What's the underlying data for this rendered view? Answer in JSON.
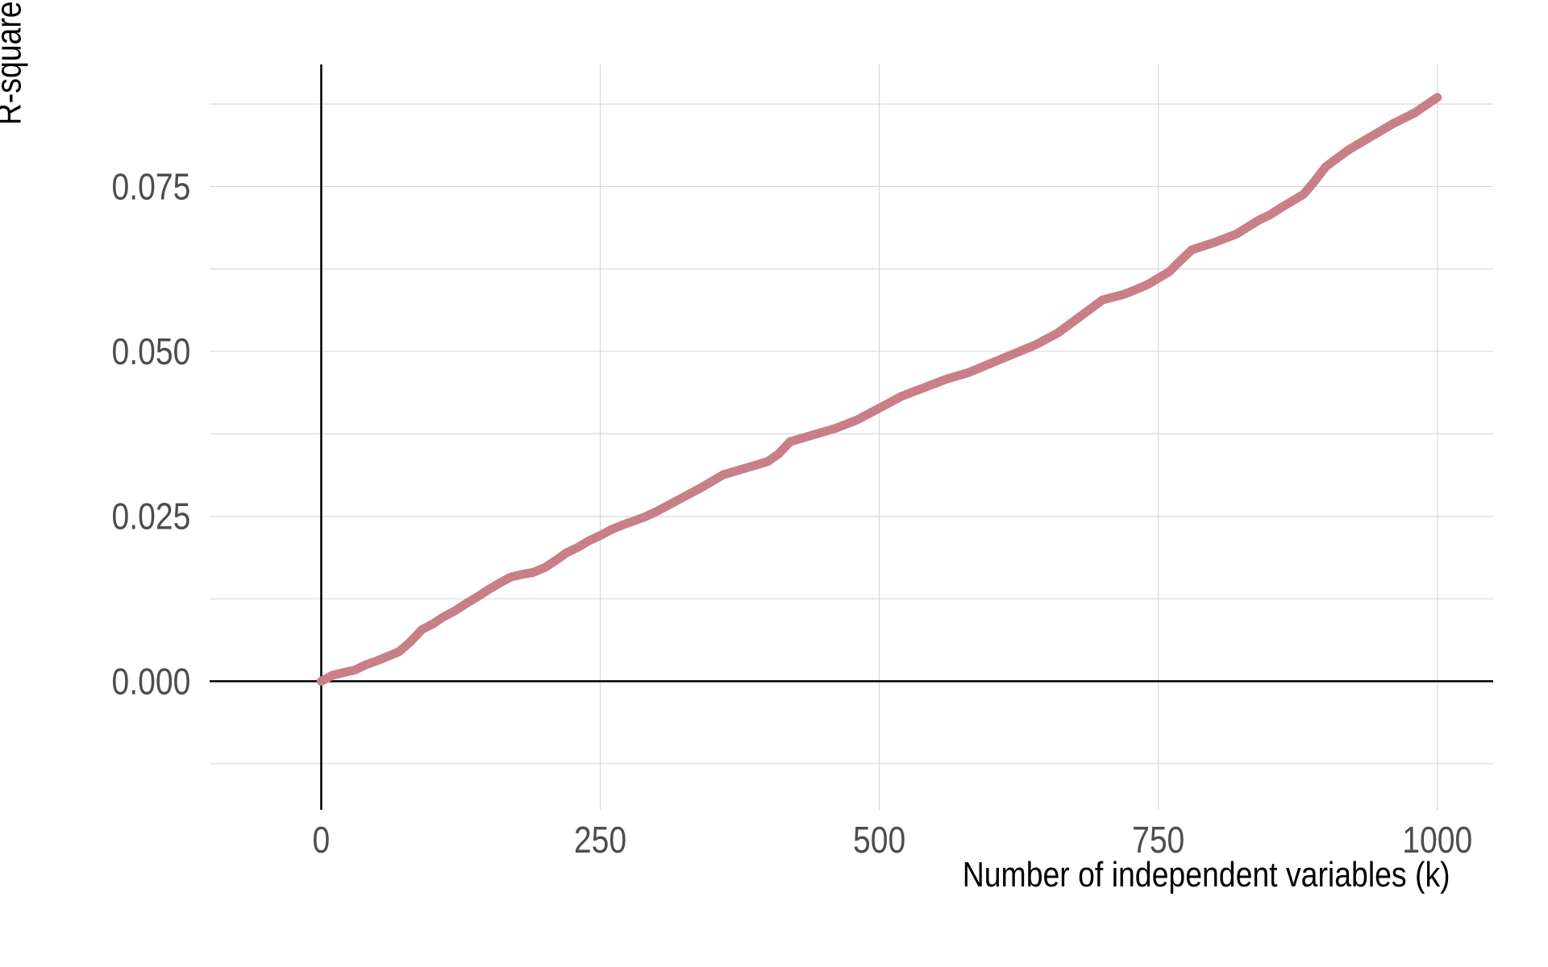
{
  "chart_data": {
    "type": "line",
    "title": "",
    "xlabel": "Number of independent variables (k)",
    "ylabel": "R-squared",
    "xlim": [
      -100,
      1050
    ],
    "ylim": [
      -0.0195,
      0.0935
    ],
    "x_ticks": [
      0,
      250,
      500,
      750,
      1000
    ],
    "x_tick_labels": [
      "0",
      "250",
      "500",
      "750",
      "1000"
    ],
    "y_ticks": [
      0.0,
      0.025,
      0.05,
      0.075
    ],
    "y_tick_labels": [
      "0.000",
      "0.025",
      "0.050",
      "0.075"
    ],
    "grid": true,
    "line_color": "#c97f87",
    "series": [
      {
        "x": [
          0,
          10,
          20,
          30,
          40,
          50,
          60,
          70,
          80,
          90,
          100,
          110,
          120,
          130,
          140,
          150,
          160,
          170,
          180,
          190,
          200,
          210,
          220,
          230,
          240,
          250,
          260,
          270,
          280,
          290,
          300,
          320,
          340,
          360,
          380,
          400,
          410,
          420,
          440,
          460,
          480,
          500,
          520,
          540,
          560,
          580,
          600,
          620,
          640,
          660,
          680,
          700,
          720,
          740,
          760,
          770,
          780,
          800,
          820,
          840,
          850,
          860,
          880,
          890,
          900,
          920,
          940,
          960,
          980,
          1000
        ],
        "y": [
          0.0,
          0.0009,
          0.0013,
          0.0017,
          0.0025,
          0.0031,
          0.0038,
          0.0045,
          0.006,
          0.0078,
          0.0087,
          0.0098,
          0.0107,
          0.0118,
          0.0128,
          0.0139,
          0.0149,
          0.0158,
          0.0162,
          0.0165,
          0.0172,
          0.0183,
          0.0195,
          0.0203,
          0.0213,
          0.0221,
          0.023,
          0.0237,
          0.0243,
          0.0249,
          0.0257,
          0.0275,
          0.0293,
          0.0313,
          0.0323,
          0.0333,
          0.0345,
          0.0363,
          0.0373,
          0.0383,
          0.0396,
          0.0414,
          0.0432,
          0.0445,
          0.0458,
          0.0468,
          0.0482,
          0.0496,
          0.051,
          0.0528,
          0.0553,
          0.0578,
          0.0587,
          0.0601,
          0.0621,
          0.0638,
          0.0654,
          0.0665,
          0.0678,
          0.0699,
          0.0707,
          0.0718,
          0.0738,
          0.0758,
          0.078,
          0.0805,
          0.0825,
          0.0845,
          0.0862,
          0.0885
        ]
      }
    ]
  }
}
